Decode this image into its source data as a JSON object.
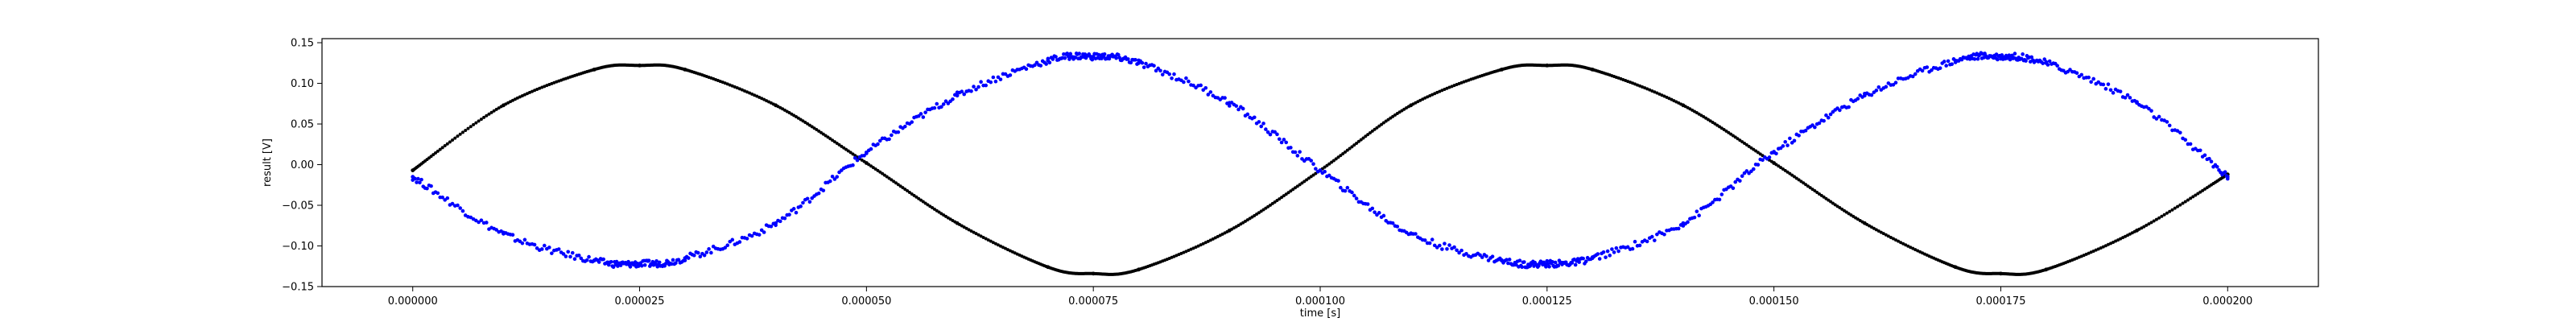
{
  "chart_data": {
    "type": "scatter",
    "title": "",
    "xlabel": "time [s]",
    "ylabel": "result [V]",
    "xlim": [
      -1e-05,
      0.00021
    ],
    "ylim": [
      -0.15,
      0.155
    ],
    "x_ticks": [
      0.0,
      2.5e-05,
      5e-05,
      7.5e-05,
      0.0001,
      0.000125,
      0.00015,
      0.000175,
      0.0002
    ],
    "x_tick_labels": [
      "0.000000",
      "0.000025",
      "0.000050",
      "0.000075",
      "0.000100",
      "0.000125",
      "0.000150",
      "0.000175",
      "0.000200"
    ],
    "y_ticks": [
      -0.15,
      -0.1,
      -0.05,
      0.0,
      0.05,
      0.1,
      0.15
    ],
    "y_tick_labels": [
      "−0.15",
      "−0.10",
      "−0.05",
      "0.00",
      "0.05",
      "0.10",
      "0.15"
    ],
    "grid": false,
    "series": [
      {
        "color": "#000000",
        "marker": "dot",
        "x": [
          0.0,
          1e-05,
          2e-05,
          2.5e-05,
          3e-05,
          4e-05,
          5e-05,
          6e-05,
          7e-05,
          7.5e-05,
          8e-05,
          9e-05,
          0.0001,
          0.00011,
          0.00012,
          0.000125,
          0.00013,
          0.00014,
          0.00015,
          0.00016,
          0.00017,
          0.000175,
          0.00018,
          0.00019,
          0.0002
        ],
        "y": [
          -0.007,
          0.073,
          0.117,
          0.122,
          0.117,
          0.073,
          0.002,
          -0.072,
          -0.126,
          -0.134,
          -0.129,
          -0.081,
          -0.007,
          0.073,
          0.117,
          0.122,
          0.117,
          0.073,
          0.002,
          -0.072,
          -0.126,
          -0.134,
          -0.129,
          -0.081,
          -0.012
        ]
      },
      {
        "color": "#0000ff",
        "marker": "dot",
        "x": [
          0.0,
          1e-05,
          2e-05,
          2.5e-05,
          3e-05,
          4e-05,
          5e-05,
          6e-05,
          7e-05,
          7.5e-05,
          8e-05,
          9e-05,
          0.0001,
          0.00011,
          0.00012,
          0.000125,
          0.00013,
          0.00014,
          0.00015,
          0.00016,
          0.00017,
          0.000175,
          0.00018,
          0.00019,
          0.0002
        ],
        "y": [
          -0.015,
          -0.085,
          -0.118,
          -0.122,
          -0.115,
          -0.072,
          0.015,
          0.085,
          0.128,
          0.133,
          0.125,
          0.076,
          -0.007,
          -0.085,
          -0.118,
          -0.122,
          -0.115,
          -0.072,
          0.015,
          0.085,
          0.128,
          0.133,
          0.125,
          0.076,
          -0.015
        ]
      }
    ]
  }
}
